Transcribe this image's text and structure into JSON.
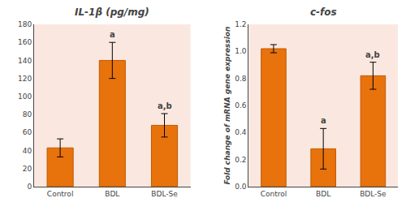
{
  "chart_data": [
    {
      "type": "bar",
      "title": "IL-1β (pg/mg)",
      "categories": [
        "Control",
        "BDL",
        "BDL-Se"
      ],
      "values": [
        43,
        140,
        68
      ],
      "errors": [
        10,
        20,
        13
      ],
      "color": "#E8720C",
      "ylim": [
        0,
        180
      ],
      "yticks": [
        0,
        20,
        40,
        60,
        80,
        100,
        120,
        140,
        160,
        180
      ],
      "annotations": [
        {
          "category": "BDL",
          "text": "a"
        },
        {
          "category": "BDL-Se",
          "text": "a,b"
        }
      ],
      "grid": false
    },
    {
      "type": "bar",
      "title": "c-fos",
      "categories": [
        "Control",
        "BDL",
        "BDL-Se"
      ],
      "values": [
        1.02,
        0.28,
        0.82
      ],
      "errors": [
        0.03,
        0.15,
        0.1
      ],
      "color": "#E8720C",
      "ylabel": "Fold change of mRNA gene expression",
      "ylim": [
        0,
        1.2
      ],
      "yticks": [
        {
          "value": 0,
          "label": "0.0"
        },
        0.2,
        0.4,
        0.6,
        0.8,
        {
          "value": 1.0,
          "label": "1.0"
        },
        1.2
      ],
      "annotations": [
        {
          "category": "BDL",
          "text": "a"
        },
        {
          "category": "BDL-Se",
          "text": "a,b"
        }
      ],
      "grid": false
    }
  ]
}
